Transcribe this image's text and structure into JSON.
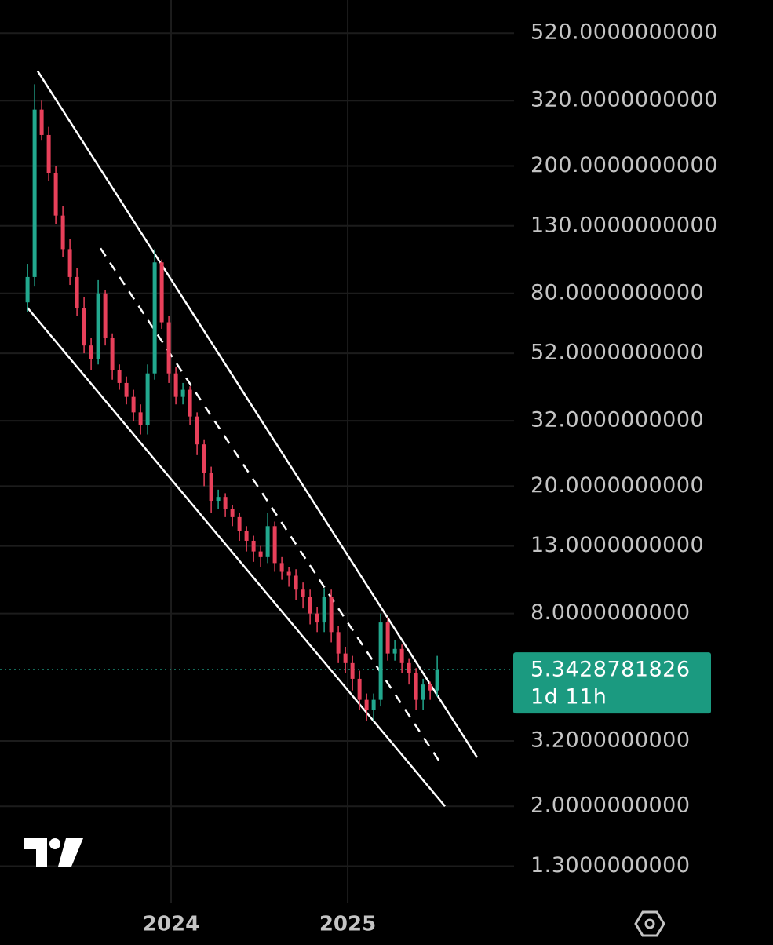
{
  "chart_data": {
    "type": "candlestick",
    "log_scale": true,
    "grid": true,
    "up_color": "#22a88e",
    "down_color": "#e8405a",
    "xlim": [
      2023.031,
      2025.942
    ],
    "xticks": [
      2024,
      2025
    ],
    "ylim": [
      1,
      660
    ],
    "yticks": [
      {
        "value": 520,
        "label": "520.0000000000"
      },
      {
        "value": 320,
        "label": "320.0000000000"
      },
      {
        "value": 200,
        "label": "200.0000000000"
      },
      {
        "value": 130,
        "label": "130.0000000000"
      },
      {
        "value": 80,
        "label": "80.0000000000"
      },
      {
        "value": 52,
        "label": "52.0000000000"
      },
      {
        "value": 32,
        "label": "32.0000000000"
      },
      {
        "value": 20,
        "label": "20.0000000000"
      },
      {
        "value": 13,
        "label": "13.0000000000"
      },
      {
        "value": 8,
        "label": "8.0000000000"
      },
      {
        "value": 3.2,
        "label": "3.2000000000"
      },
      {
        "value": 2,
        "label": "2.0000000000"
      },
      {
        "value": 1.3,
        "label": "1.3000000000"
      }
    ],
    "x": [
      2023.187,
      2023.227,
      2023.267,
      2023.307,
      2023.347,
      2023.387,
      2023.427,
      2023.467,
      2023.507,
      2023.547,
      2023.587,
      2023.627,
      2023.667,
      2023.707,
      2023.747,
      2023.787,
      2023.827,
      2023.867,
      2023.907,
      2023.947,
      2023.987,
      2024.027,
      2024.067,
      2024.107,
      2024.147,
      2024.187,
      2024.227,
      2024.267,
      2024.307,
      2024.347,
      2024.387,
      2024.427,
      2024.467,
      2024.507,
      2024.547,
      2024.587,
      2024.627,
      2024.667,
      2024.707,
      2024.747,
      2024.787,
      2024.827,
      2024.867,
      2024.907,
      2024.947,
      2024.987,
      2025.027,
      2025.067,
      2025.107,
      2025.147,
      2025.187,
      2025.227,
      2025.267,
      2025.307,
      2025.347,
      2025.387,
      2025.427,
      2025.467,
      2025.507
    ],
    "open": [
      75,
      90,
      300,
      250,
      190,
      140,
      110,
      90,
      72,
      55,
      50,
      80,
      58,
      46,
      42,
      38,
      34,
      31,
      45,
      100,
      65,
      45,
      38,
      40,
      33,
      27,
      22,
      18,
      18.5,
      17,
      16,
      14.5,
      13.5,
      12.5,
      12,
      15,
      11.5,
      10.8,
      10.5,
      9.5,
      9,
      8,
      7.5,
      9,
      7,
      6,
      5.6,
      5,
      4.3,
      4,
      4.3,
      7.5,
      6,
      6.2,
      5.6,
      5.2,
      4.3,
      4.8,
      4.6
    ],
    "high": [
      99,
      360,
      320,
      265,
      200,
      150,
      118,
      96,
      78,
      58,
      88,
      82,
      60,
      48,
      44,
      40,
      36,
      48,
      110,
      102,
      68,
      47,
      42,
      41,
      34,
      28,
      23,
      19.5,
      19,
      17.5,
      16.5,
      15,
      14,
      13,
      16.5,
      15.5,
      12,
      11.2,
      11,
      10,
      9.5,
      8.4,
      9.6,
      9.5,
      7.3,
      6.3,
      5.9,
      5.3,
      4.5,
      4.5,
      8,
      7.8,
      6.6,
      6.4,
      5.8,
      5.4,
      5,
      4.9,
      5.9
    ],
    "low": [
      70,
      84,
      240,
      180,
      132,
      104,
      85,
      68,
      52,
      46,
      48,
      55,
      43,
      40,
      36,
      32,
      29,
      29,
      43,
      62,
      42,
      36,
      36,
      31,
      25,
      20,
      16.5,
      17,
      16,
      15,
      13.5,
      12.5,
      11.6,
      11.2,
      11.5,
      10.8,
      10.2,
      9.7,
      8.8,
      8.3,
      7.4,
      7,
      7,
      6.5,
      5.6,
      5.2,
      4.6,
      4,
      3.7,
      3.7,
      4.1,
      5.7,
      5.7,
      5.2,
      4.8,
      4,
      4,
      4.3,
      4.4
    ],
    "close": [
      90,
      300,
      250,
      190,
      140,
      110,
      90,
      72,
      55,
      50,
      80,
      58,
      46,
      42,
      38,
      34,
      31,
      45,
      100,
      65,
      45,
      38,
      40,
      33,
      27,
      22,
      18,
      18.5,
      17,
      16,
      14.5,
      13.5,
      12.5,
      12,
      15,
      11.5,
      10.8,
      10.5,
      9.5,
      9,
      8,
      7.5,
      9,
      7,
      6,
      5.6,
      5,
      4.3,
      4,
      4.3,
      7.5,
      6,
      6.2,
      5.6,
      5.2,
      4.3,
      4.8,
      4.6,
      5.34
    ],
    "current_price": 5.3428781826,
    "countdown": "1d 11h",
    "channel_lines": [
      {
        "style": "solid",
        "x": [
          2023.244,
          2025.733
        ],
        "y": [
          396,
          2.84
        ]
      },
      {
        "style": "solid",
        "x": [
          2023.187,
          2025.551
        ],
        "y": [
          72.1,
          2.0
        ]
      },
      {
        "style": "dashed",
        "x": [
          2023.6,
          2025.533
        ],
        "y": [
          110.7,
          2.69
        ]
      }
    ]
  }
}
